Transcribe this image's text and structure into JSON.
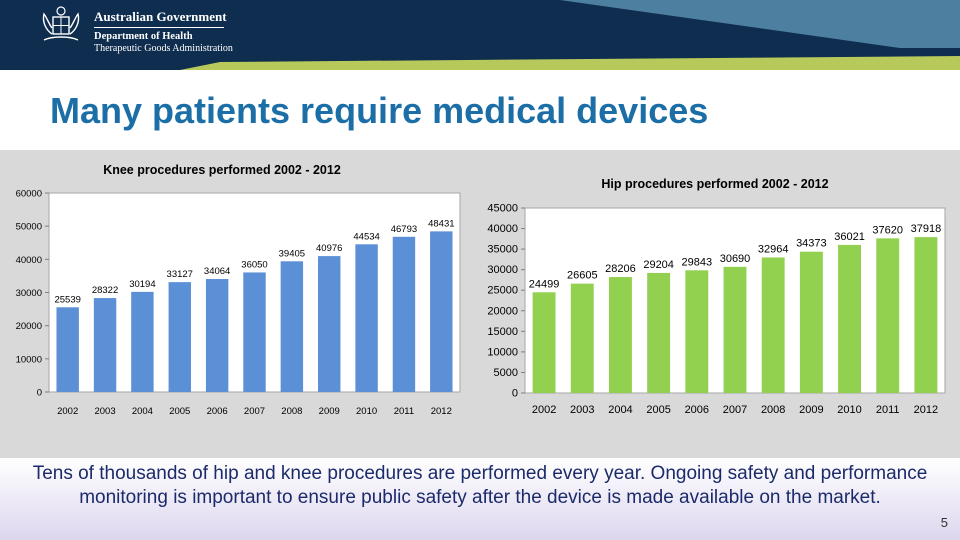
{
  "header": {
    "line1": "Australian Government",
    "line2": "Department of Health",
    "line3": "Therapeutic Goods Administration",
    "crest_icon": "coat-of-arms-icon"
  },
  "slide": {
    "title": "Many patients require medical devices",
    "footer_text": "Tens of thousands of hip and knee procedures are performed every year. Ongoing safety and performance monitoring is important to ensure public safety after the device is made available on the market.",
    "page_number": "5"
  },
  "colors": {
    "header_bg": "#0f2d4f",
    "header_band": "#4d7fa0",
    "title": "#1b6ea6",
    "knee_bars": "#5b8fd6",
    "hip_bars": "#92d050"
  },
  "chart_data": [
    {
      "type": "bar",
      "title": "Knee procedures performed 2002 - 2012",
      "categories": [
        "2002",
        "2003",
        "2004",
        "2005",
        "2006",
        "2007",
        "2008",
        "2009",
        "2010",
        "2011",
        "2012"
      ],
      "values": [
        25539,
        28322,
        30194,
        33127,
        34064,
        36050,
        39405,
        40976,
        44534,
        46793,
        48431
      ],
      "ylim": [
        0,
        60000
      ],
      "yticks": [
        "0",
        "10000",
        "20000",
        "30000",
        "40000",
        "50000",
        "60000"
      ],
      "grid": false,
      "legend": false,
      "data_labels": true
    },
    {
      "type": "bar",
      "title": "Hip procedures performed 2002 - 2012",
      "categories": [
        "2002",
        "2003",
        "2004",
        "2005",
        "2006",
        "2007",
        "2008",
        "2009",
        "2010",
        "2011",
        "2012"
      ],
      "values": [
        24499,
        26605,
        28206,
        29204,
        29843,
        30690,
        32964,
        34373,
        36021,
        37620,
        37918
      ],
      "ylim": [
        0,
        45000
      ],
      "yticks": [
        "0",
        "5000",
        "10000",
        "15000",
        "20000",
        "25000",
        "30000",
        "35000",
        "40000",
        "45000"
      ],
      "grid": false,
      "legend": false,
      "data_labels": true
    }
  ]
}
